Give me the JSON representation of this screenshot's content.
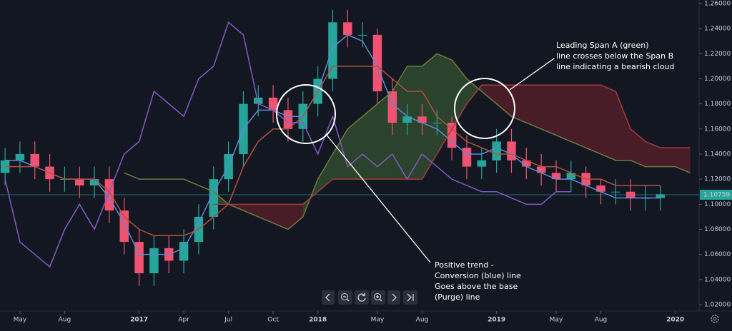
{
  "chart_data": {
    "type": "candlestick",
    "candles": {
      "x": [
        3,
        4,
        5,
        6,
        7,
        8,
        9,
        10,
        11,
        12,
        13,
        14,
        15,
        16,
        17,
        18,
        19,
        20,
        21,
        22,
        23,
        24,
        25,
        26,
        27,
        28,
        29,
        30,
        31,
        32,
        33,
        34,
        35,
        36,
        37,
        38,
        39,
        40,
        41,
        42,
        43,
        44,
        45,
        46,
        47
      ],
      "open": [
        1.125,
        1.135,
        1.14,
        1.13,
        1.12,
        1.12,
        1.115,
        1.12,
        1.095,
        1.07,
        1.045,
        1.065,
        1.055,
        1.07,
        1.09,
        1.12,
        1.14,
        1.18,
        1.185,
        1.175,
        1.16,
        1.18,
        1.2,
        1.245,
        1.235,
        1.235,
        1.19,
        1.165,
        1.17,
        1.165,
        1.165,
        1.145,
        1.13,
        1.135,
        1.15,
        1.135,
        1.13,
        1.125,
        1.12,
        1.125,
        1.115,
        1.11,
        1.11,
        1.105,
        1.105
      ],
      "high": [
        1.145,
        1.15,
        1.15,
        1.14,
        1.13,
        1.13,
        1.13,
        1.13,
        1.105,
        1.08,
        1.075,
        1.075,
        1.08,
        1.1,
        1.13,
        1.15,
        1.19,
        1.195,
        1.195,
        1.185,
        1.19,
        1.21,
        1.255,
        1.255,
        1.245,
        1.24,
        1.2,
        1.18,
        1.18,
        1.175,
        1.17,
        1.155,
        1.145,
        1.16,
        1.16,
        1.145,
        1.14,
        1.135,
        1.135,
        1.13,
        1.12,
        1.12,
        1.12,
        1.115,
        1.115
      ],
      "low": [
        1.115,
        1.125,
        1.12,
        1.11,
        1.11,
        1.105,
        1.105,
        1.085,
        1.06,
        1.035,
        1.035,
        1.045,
        1.045,
        1.06,
        1.08,
        1.11,
        1.13,
        1.17,
        1.165,
        1.15,
        1.15,
        1.17,
        1.19,
        1.225,
        1.225,
        1.18,
        1.155,
        1.155,
        1.155,
        1.155,
        1.135,
        1.12,
        1.12,
        1.125,
        1.125,
        1.12,
        1.115,
        1.11,
        1.11,
        1.105,
        1.1,
        1.1,
        1.095,
        1.095,
        1.095
      ],
      "close": [
        1.135,
        1.14,
        1.13,
        1.12,
        1.12,
        1.115,
        1.12,
        1.095,
        1.07,
        1.045,
        1.065,
        1.055,
        1.07,
        1.09,
        1.12,
        1.14,
        1.18,
        1.185,
        1.175,
        1.16,
        1.18,
        1.2,
        1.245,
        1.235,
        1.235,
        1.19,
        1.165,
        1.17,
        1.165,
        1.165,
        1.145,
        1.13,
        1.135,
        1.15,
        1.135,
        1.13,
        1.125,
        1.12,
        1.125,
        1.115,
        1.11,
        1.11,
        1.105,
        1.105,
        1.108
      ],
      "up_color": "#26a69a",
      "down_color": "#ef5371"
    },
    "line_x": [
      3,
      4,
      5,
      6,
      7,
      8,
      9,
      10,
      11,
      12,
      13,
      14,
      15,
      16,
      17,
      18,
      19,
      20,
      21,
      22,
      23,
      24,
      25,
      26,
      27,
      28,
      29,
      30,
      31,
      32,
      33,
      34,
      35,
      36,
      37,
      38,
      39,
      40,
      41,
      42,
      43,
      44,
      45,
      46,
      47,
      48,
      49
    ],
    "lines": [
      {
        "color": "#5b8ad8",
        "values": [
          1.135,
          1.135,
          1.13,
          1.125,
          1.12,
          1.12,
          1.12,
          1.105,
          1.085,
          1.06,
          1.06,
          1.06,
          1.065,
          1.085,
          1.11,
          1.13,
          1.16,
          1.175,
          1.175,
          1.17,
          1.17,
          1.19,
          1.225,
          1.235,
          1.23,
          1.21,
          1.18,
          1.17,
          1.165,
          1.16,
          1.15,
          1.14,
          1.14,
          1.145,
          1.14,
          1.13,
          1.125,
          1.12,
          1.12,
          1.115,
          1.11,
          1.105,
          1.105,
          1.105,
          1.105,
          null,
          null
        ]
      },
      {
        "color": "#b4513c",
        "values": [
          1.13,
          1.13,
          1.13,
          1.125,
          1.12,
          1.12,
          1.12,
          1.11,
          1.09,
          1.08,
          1.075,
          1.075,
          1.075,
          1.08,
          1.09,
          1.1,
          1.13,
          1.15,
          1.16,
          1.16,
          1.17,
          1.19,
          1.21,
          1.21,
          1.21,
          1.21,
          1.2,
          1.19,
          1.19,
          1.17,
          1.16,
          1.15,
          1.145,
          1.14,
          1.14,
          1.135,
          1.13,
          1.13,
          1.125,
          1.12,
          1.12,
          1.115,
          1.115,
          1.115,
          1.115,
          null,
          null
        ]
      },
      {
        "color": "#8659c4",
        "values": [
          1.12,
          1.07,
          1.06,
          1.05,
          1.08,
          1.1,
          1.08,
          1.11,
          1.14,
          1.15,
          1.19,
          1.18,
          1.17,
          1.2,
          1.21,
          1.245,
          1.235,
          1.18,
          1.175,
          1.165,
          1.165,
          1.14,
          1.17,
          1.13,
          1.14,
          1.13,
          1.14,
          1.12,
          1.14,
          1.13,
          1.12,
          1.115,
          1.11,
          1.11,
          1.105,
          1.1,
          1.1,
          1.11,
          1.11,
          null,
          null,
          null,
          null,
          null,
          null,
          null,
          null
        ]
      },
      {
        "color": "#6e7b3c",
        "values": [
          null,
          null,
          null,
          null,
          null,
          null,
          null,
          null,
          1.125,
          1.12,
          1.12,
          1.12,
          1.12,
          1.115,
          1.11,
          1.1,
          1.095,
          1.09,
          1.085,
          1.08,
          1.09,
          1.12,
          1.14,
          1.16,
          1.17,
          1.18,
          1.19,
          1.21,
          1.21,
          1.22,
          1.215,
          1.2,
          1.19,
          1.18,
          1.17,
          1.165,
          1.16,
          1.155,
          1.15,
          1.145,
          1.14,
          1.135,
          1.135,
          1.13,
          1.13,
          1.13,
          1.125
        ]
      },
      {
        "color": "#a63a3c",
        "values": [
          null,
          null,
          null,
          null,
          null,
          null,
          null,
          null,
          null,
          null,
          null,
          null,
          null,
          null,
          1.1,
          1.1,
          1.1,
          1.1,
          1.1,
          1.1,
          1.1,
          1.11,
          1.12,
          1.12,
          1.12,
          1.12,
          1.12,
          1.12,
          1.12,
          1.14,
          1.16,
          1.18,
          1.195,
          1.195,
          1.195,
          1.195,
          1.195,
          1.195,
          1.195,
          1.195,
          1.195,
          1.19,
          1.16,
          1.15,
          1.145,
          1.145,
          1.145
        ]
      }
    ],
    "cloud": {
      "up_color": "#4a7a3a",
      "down_color": "#8c2530"
    },
    "last_price": {
      "value": 1.10759,
      "label": "1.10759",
      "color": "#26a69a"
    },
    "xlim": [
      2.66,
      49.6
    ],
    "xticks": [
      {
        "value": 4,
        "label": "May"
      },
      {
        "value": 7,
        "label": "Aug"
      },
      {
        "value": 12,
        "label": "2017"
      },
      {
        "value": 15,
        "label": "Apr"
      },
      {
        "value": 18,
        "label": "Jul"
      },
      {
        "value": 21,
        "label": "Oct"
      },
      {
        "value": 24,
        "label": "2018"
      },
      {
        "value": 28,
        "label": "May"
      },
      {
        "value": 31,
        "label": "Aug"
      },
      {
        "value": 36,
        "label": "2019"
      },
      {
        "value": 40,
        "label": "May"
      },
      {
        "value": 43,
        "label": "Aug"
      },
      {
        "value": 48,
        "label": "2020"
      }
    ],
    "ylim": [
      1.0149,
      1.2628
    ],
    "yticks": [
      {
        "value": 1.02,
        "label": "1.02000"
      },
      {
        "value": 1.04,
        "label": "1.04000"
      },
      {
        "value": 1.06,
        "label": "1.06000"
      },
      {
        "value": 1.08,
        "label": "1.08000"
      },
      {
        "value": 1.1,
        "label": "1.10000"
      },
      {
        "value": 1.12,
        "label": "1.12000"
      },
      {
        "value": 1.14,
        "label": "1.14000"
      },
      {
        "value": 1.16,
        "label": "1.16000"
      },
      {
        "value": 1.18,
        "label": "1.18000"
      },
      {
        "value": 1.2,
        "label": "1.20000"
      },
      {
        "value": 1.22,
        "label": "1.22000"
      },
      {
        "value": 1.24,
        "label": "1.24000"
      },
      {
        "value": 1.26,
        "label": "1.26000"
      }
    ],
    "annotations": [
      {
        "lines": [
          "Leading Span A (green)",
          "line crosses below the Span B",
          "line indicating a bearish cloud"
        ]
      },
      {
        "lines": [
          "Positive trend -",
          "Conversion (blue) line",
          "Goes above the base",
          "(Purge) line"
        ]
      }
    ]
  }
}
